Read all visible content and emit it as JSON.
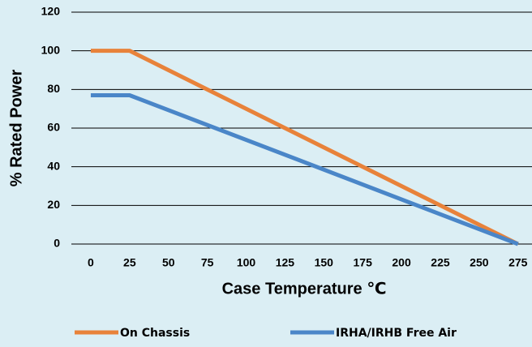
{
  "chart_data": {
    "type": "line",
    "x_label": "Case Temperature ℃",
    "y_label": "% Rated Power",
    "x": [
      0,
      25,
      275
    ],
    "series": [
      {
        "name": "On Chassis",
        "color": "#e8823a",
        "values": [
          100,
          100,
          0
        ]
      },
      {
        "name": "IRHA/IRHB Free Air",
        "color": "#4a86c8",
        "values": [
          77,
          77,
          0
        ]
      }
    ],
    "xlim": [
      -12.5,
      284
    ],
    "xticks": [
      0,
      25,
      50,
      75,
      100,
      125,
      150,
      175,
      200,
      225,
      250,
      275
    ],
    "ylim": [
      0,
      120
    ],
    "yticks": [
      0,
      20,
      40,
      60,
      80,
      100,
      120
    ],
    "grid": true,
    "legend": "bottom"
  }
}
